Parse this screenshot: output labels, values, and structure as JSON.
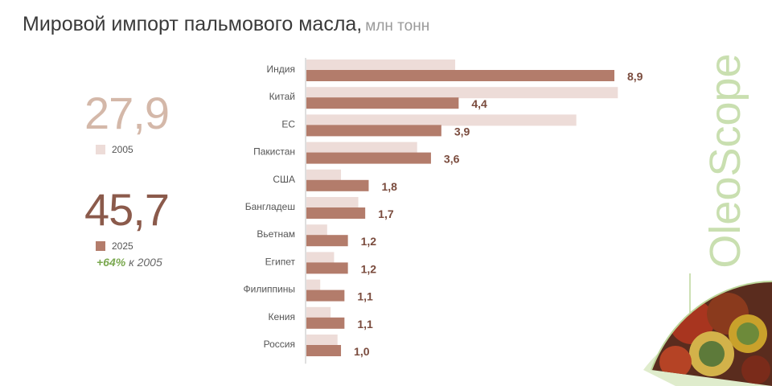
{
  "header": {
    "title": "Мировой импорт пальмового масла,",
    "unit": "млн тонн"
  },
  "totals": {
    "value_2005": "27,9",
    "label_2005": "2005",
    "value_2025": "45,7",
    "label_2025": "2025",
    "growth_pct": "+64%",
    "growth_text": "к 2005"
  },
  "brand": {
    "name": "OleoScope"
  },
  "colors": {
    "bar_2005": "#eddcd8",
    "bar_2025": "#b37c6b",
    "total_2005": "#d4b8a9",
    "total_2025": "#8b5a4b",
    "accent_green": "#7aa84f",
    "brand_green": "#c9dfb0"
  },
  "chart_data": {
    "type": "bar",
    "orientation": "horizontal",
    "categories": [
      "Индия",
      "Китай",
      "ЕС",
      "Пакистан",
      "США",
      "Бангладеш",
      "Вьетнам",
      "Египет",
      "Филиппины",
      "Кения",
      "Россия"
    ],
    "series": [
      {
        "name": "2005",
        "values": [
          4.3,
          9.0,
          7.8,
          3.2,
          1.0,
          1.5,
          0.6,
          0.8,
          0.4,
          0.7,
          0.9
        ]
      },
      {
        "name": "2025",
        "values": [
          8.9,
          4.4,
          3.9,
          3.6,
          1.8,
          1.7,
          1.2,
          1.2,
          1.1,
          1.1,
          1.0
        ]
      }
    ],
    "data_labels": [
      "8,9",
      "4,4",
      "3,9",
      "3,6",
      "1,8",
      "1,7",
      "1,2",
      "1,2",
      "1,1",
      "1,1",
      "1,0"
    ],
    "xlim": [
      0,
      8.9
    ],
    "grid": false,
    "legend": "left"
  }
}
